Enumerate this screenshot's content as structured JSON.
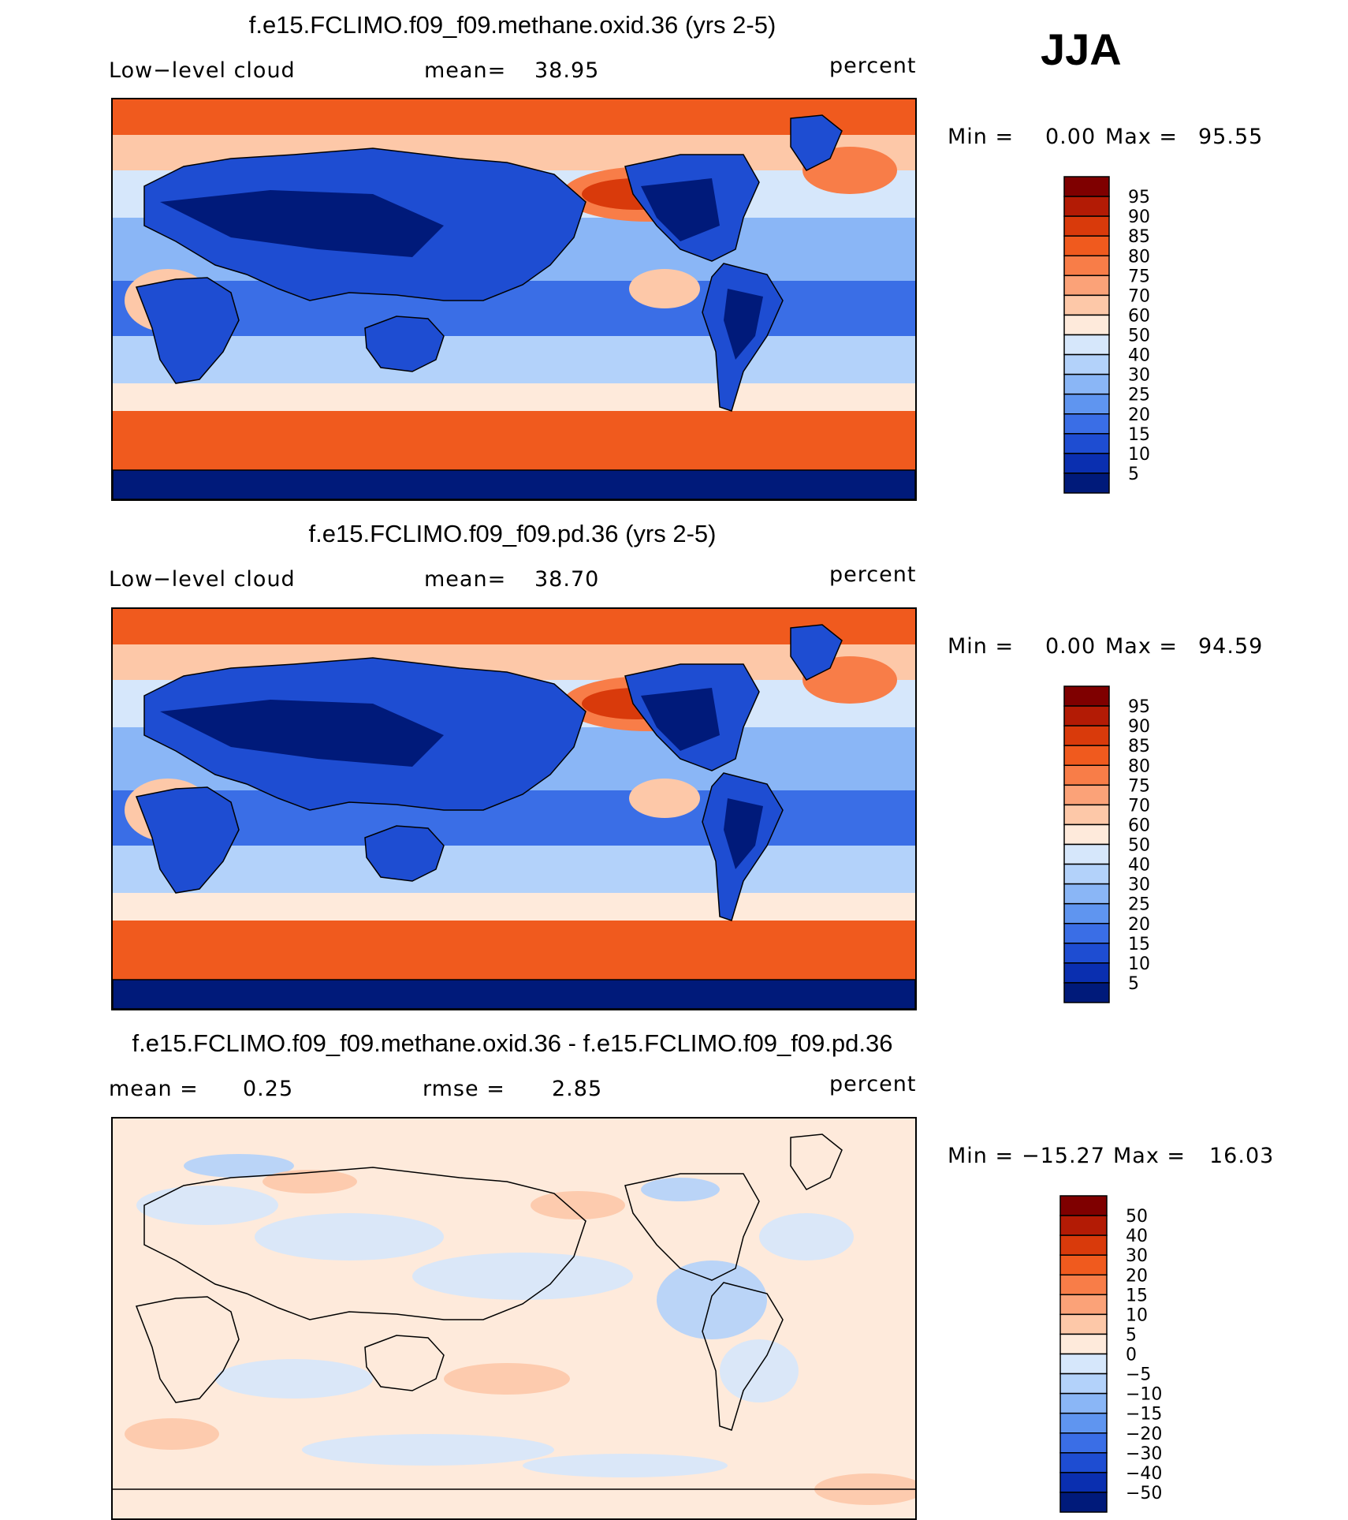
{
  "season": "JJA",
  "panels": [
    {
      "title": "f.e15.FCLIMO.f09_f09.methane.oxid.36 (yrs 2-5)",
      "left_label": "Low−level cloud",
      "mid_label": "mean=",
      "mid_value": "38.95",
      "units": "percent",
      "min_label": "Min =",
      "min_value": "0.00",
      "max_label": "Max =",
      "max_value": "95.55",
      "pattern": "field",
      "colorbar": {
        "levels": [
          "95",
          "90",
          "85",
          "80",
          "75",
          "70",
          "60",
          "50",
          "40",
          "30",
          "25",
          "20",
          "15",
          "10",
          "5"
        ],
        "colors": [
          "#7f0000",
          "#b31b05",
          "#d93a0b",
          "#f05a1e",
          "#f87d48",
          "#fba278",
          "#fdc8a8",
          "#feeadb",
          "#d6e7fb",
          "#b3d2fa",
          "#8ab6f6",
          "#5f95f0",
          "#3a6ee6",
          "#1e4dd2",
          "#0a2fb0",
          "#001a7a"
        ]
      }
    },
    {
      "title": "f.e15.FCLIMO.f09_f09.pd.36 (yrs 2-5)",
      "left_label": "Low−level cloud",
      "mid_label": "mean=",
      "mid_value": "38.70",
      "units": "percent",
      "min_label": "Min =",
      "min_value": "0.00",
      "max_label": "Max =",
      "max_value": "94.59",
      "pattern": "field",
      "colorbar": {
        "levels": [
          "95",
          "90",
          "85",
          "80",
          "75",
          "70",
          "60",
          "50",
          "40",
          "30",
          "25",
          "20",
          "15",
          "10",
          "5"
        ],
        "colors": [
          "#7f0000",
          "#b31b05",
          "#d93a0b",
          "#f05a1e",
          "#f87d48",
          "#fba278",
          "#fdc8a8",
          "#feeadb",
          "#d6e7fb",
          "#b3d2fa",
          "#8ab6f6",
          "#5f95f0",
          "#3a6ee6",
          "#1e4dd2",
          "#0a2fb0",
          "#001a7a"
        ]
      }
    },
    {
      "title": "f.e15.FCLIMO.f09_f09.methane.oxid.36 - f.e15.FCLIMO.f09_f09.pd.36",
      "left_label": "mean =",
      "left_value": "0.25",
      "mid_label": "rmse =",
      "mid_value": "2.85",
      "units": "percent",
      "min_label": "Min =",
      "min_value": "−15.27",
      "max_label": "Max =",
      "max_value": "16.03",
      "pattern": "diff",
      "colorbar": {
        "levels": [
          "50",
          "40",
          "30",
          "20",
          "15",
          "10",
          "5",
          "0",
          "−5",
          "−10",
          "−15",
          "−20",
          "−30",
          "−40",
          "−50"
        ],
        "colors": [
          "#7f0000",
          "#b31b05",
          "#d93a0b",
          "#f05a1e",
          "#f87d48",
          "#fba278",
          "#fdc8a8",
          "#feeadb",
          "#d6e7fb",
          "#b3d2fa",
          "#8ab6f6",
          "#5f95f0",
          "#3a6ee6",
          "#1e4dd2",
          "#0a2fb0",
          "#001a7a"
        ]
      }
    }
  ],
  "chart_data": {
    "type": "heatmap",
    "variable": "Low−level cloud",
    "units": "percent",
    "season": "JJA",
    "maps": [
      {
        "case": "f.e15.FCLIMO.f09_f09.methane.oxid.36 (yrs 2-5)",
        "mean": 38.95,
        "min": 0.0,
        "max": 95.55,
        "contour_levels": [
          5,
          10,
          15,
          20,
          25,
          30,
          40,
          50,
          60,
          70,
          75,
          80,
          85,
          90,
          95
        ]
      },
      {
        "case": "f.e15.FCLIMO.f09_f09.pd.36 (yrs 2-5)",
        "mean": 38.7,
        "min": 0.0,
        "max": 94.59,
        "contour_levels": [
          5,
          10,
          15,
          20,
          25,
          30,
          40,
          50,
          60,
          70,
          75,
          80,
          85,
          90,
          95
        ]
      },
      {
        "case": "f.e15.FCLIMO.f09_f09.methane.oxid.36 - f.e15.FCLIMO.f09_f09.pd.36",
        "mean": 0.25,
        "rmse": 2.85,
        "min": -15.27,
        "max": 16.03,
        "contour_levels": [
          -50,
          -40,
          -30,
          -20,
          -15,
          -10,
          -5,
          0,
          5,
          10,
          15,
          20,
          30,
          40,
          50
        ]
      }
    ]
  }
}
